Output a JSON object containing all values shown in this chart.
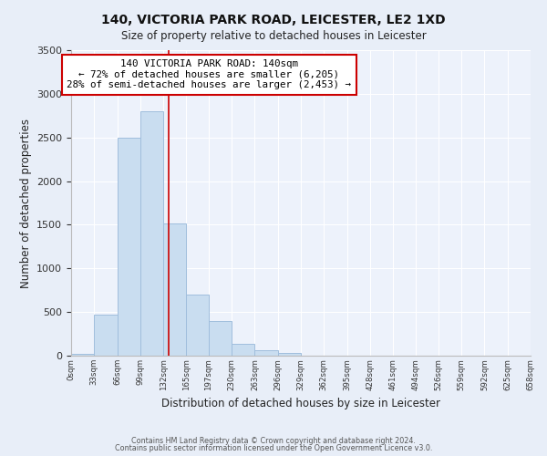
{
  "title": "140, VICTORIA PARK ROAD, LEICESTER, LE2 1XD",
  "subtitle": "Size of property relative to detached houses in Leicester",
  "xlabel": "Distribution of detached houses by size in Leicester",
  "ylabel": "Number of detached properties",
  "bar_color": "#c9ddf0",
  "bar_edgecolor": "#a0bedd",
  "bin_edges": [
    0,
    33,
    66,
    99,
    132,
    165,
    197,
    230,
    263,
    296,
    329,
    362,
    395,
    428,
    461,
    494,
    526,
    559,
    592,
    625,
    658
  ],
  "bar_heights": [
    25,
    465,
    2500,
    2800,
    1510,
    700,
    400,
    140,
    60,
    30,
    0,
    0,
    0,
    0,
    0,
    0,
    0,
    0,
    0,
    0
  ],
  "tick_labels": [
    "0sqm",
    "33sqm",
    "66sqm",
    "99sqm",
    "132sqm",
    "165sqm",
    "197sqm",
    "230sqm",
    "263sqm",
    "296sqm",
    "329sqm",
    "362sqm",
    "395sqm",
    "428sqm",
    "461sqm",
    "494sqm",
    "526sqm",
    "559sqm",
    "592sqm",
    "625sqm",
    "658sqm"
  ],
  "vline_x": 140,
  "vline_color": "#cc0000",
  "annotation_text": "140 VICTORIA PARK ROAD: 140sqm\n← 72% of detached houses are smaller (6,205)\n28% of semi-detached houses are larger (2,453) →",
  "annotation_box_color": "#ffffff",
  "annotation_box_edgecolor": "#cc0000",
  "ylim": [
    0,
    3500
  ],
  "yticks": [
    0,
    500,
    1000,
    1500,
    2000,
    2500,
    3000,
    3500
  ],
  "footer1": "Contains HM Land Registry data © Crown copyright and database right 2024.",
  "footer2": "Contains public sector information licensed under the Open Government Licence v3.0.",
  "bg_color": "#e8eef8",
  "plot_bg_color": "#edf2fb"
}
